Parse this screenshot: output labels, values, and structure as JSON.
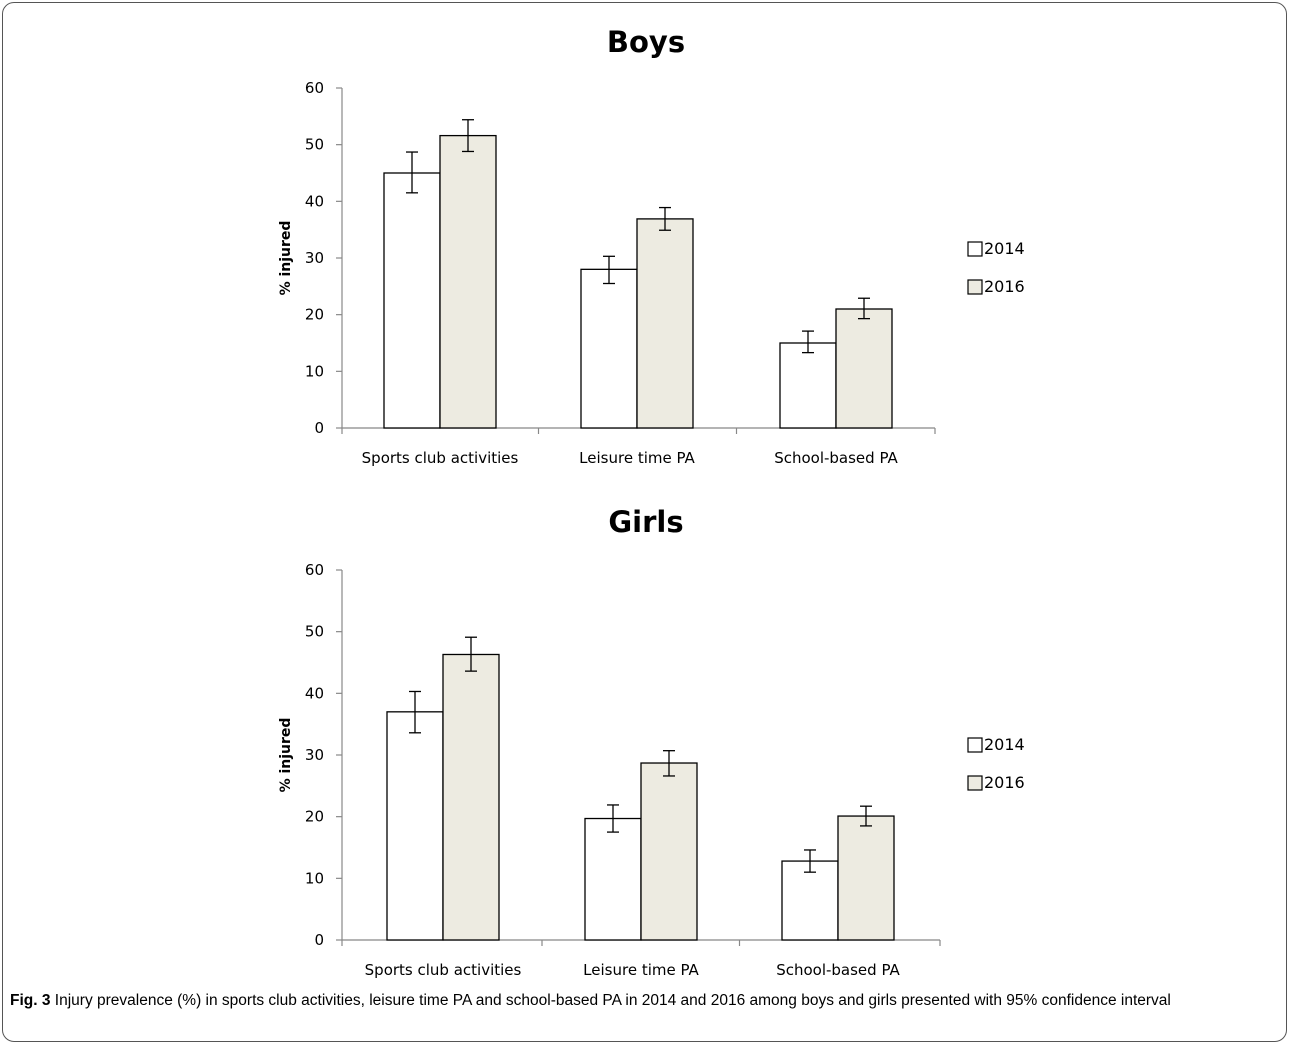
{
  "chart_data": [
    {
      "type": "bar",
      "title": "Boys",
      "ylabel": "% injured",
      "xlabel": "",
      "ylim": [
        0,
        60
      ],
      "yticks": [
        0,
        10,
        20,
        30,
        40,
        50,
        60
      ],
      "categories": [
        "Sports club activities",
        "Leisure time PA",
        "School-based PA"
      ],
      "series": [
        {
          "name": "2014",
          "values": [
            45,
            28,
            15
          ],
          "ci_low": [
            41.5,
            25.5,
            13.3
          ],
          "ci_high": [
            48.7,
            30.3,
            17.1
          ],
          "color": "#ffffff"
        },
        {
          "name": "2016",
          "values": [
            51.6,
            36.9,
            21
          ],
          "ci_low": [
            48.8,
            34.9,
            19.3
          ],
          "ci_high": [
            54.4,
            38.9,
            22.9
          ],
          "color": "#edebe1"
        }
      ],
      "legend_position": "right"
    },
    {
      "type": "bar",
      "title": "Girls",
      "ylabel": "% injured",
      "xlabel": "",
      "ylim": [
        0,
        60
      ],
      "yticks": [
        0,
        10,
        20,
        30,
        40,
        50,
        60
      ],
      "categories": [
        "Sports club activities",
        "Leisure time PA",
        "School-based PA"
      ],
      "series": [
        {
          "name": "2014",
          "values": [
            37,
            19.7,
            12.8
          ],
          "ci_low": [
            33.6,
            17.5,
            11
          ],
          "ci_high": [
            40.3,
            21.9,
            14.6
          ],
          "color": "#ffffff"
        },
        {
          "name": "2016",
          "values": [
            46.3,
            28.7,
            20.1
          ],
          "ci_low": [
            43.6,
            26.6,
            18.5
          ],
          "ci_high": [
            49.1,
            30.7,
            21.7
          ],
          "color": "#edebe1"
        }
      ],
      "legend_position": "right"
    }
  ],
  "caption": {
    "label": "Fig. 3",
    "text": " Injury prevalence (%) in sports club activities, leisure time PA and school-based PA in 2014 and 2016 among boys and girls presented with 95% confidence interval"
  }
}
